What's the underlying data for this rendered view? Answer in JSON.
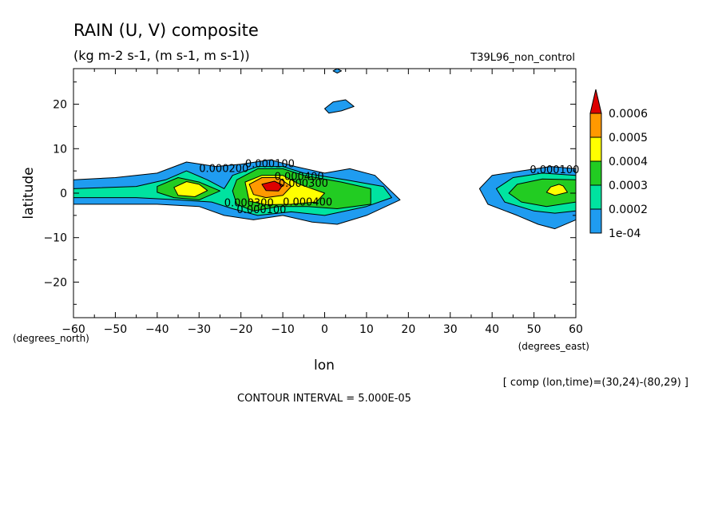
{
  "chart_data": {
    "type": "filled-contour",
    "title": "RAIN (U, V) composite",
    "subtitle": "(kg m-2 s-1, (m s-1, m s-1))",
    "run_label": "T39L96_non_control",
    "xlabel": "lon",
    "ylabel": "latitude",
    "x_units": "(degrees_east)",
    "y_units": "(degrees_north)",
    "xlim": [
      -60,
      60
    ],
    "ylim": [
      -28,
      28
    ],
    "x_ticks": [
      -60,
      -50,
      -40,
      -30,
      -20,
      -10,
      0,
      10,
      20,
      30,
      40,
      50,
      60
    ],
    "y_ticks": [
      -20,
      -10,
      0,
      10,
      20
    ],
    "colorbar": {
      "levels": [
        "1e-04",
        "0.0002",
        "0.0003",
        "0.0004",
        "0.0005",
        "0.0006"
      ],
      "colors": [
        "#1f9cf0",
        "#00e3a0",
        "#22cc22",
        "#ffff00",
        "#ff9900",
        "#dd0000"
      ]
    },
    "contour_labels": [
      "0.000200",
      "0.000100",
      "0.000400",
      "0.000300",
      "0.000300",
      "0.000100",
      "0.000400",
      "0.000100"
    ],
    "contour_interval": "CONTOUR INTERVAL = 5.000E-05",
    "footer_note": "[ comp (lon,time)=(30,24)-(80,29) ]",
    "regions": [
      {
        "level": 1,
        "points": [
          [
            -60,
            3
          ],
          [
            -50,
            3.5
          ],
          [
            -40,
            4.5
          ],
          [
            -33,
            7
          ],
          [
            -26,
            6
          ],
          [
            -20,
            6.5
          ],
          [
            -13,
            7.5
          ],
          [
            -7,
            6
          ],
          [
            0,
            4.5
          ],
          [
            6,
            5.5
          ],
          [
            12,
            4
          ],
          [
            18,
            -1.5
          ],
          [
            10,
            -5
          ],
          [
            3,
            -7
          ],
          [
            -3,
            -6.5
          ],
          [
            -10,
            -5
          ],
          [
            -17,
            -6
          ],
          [
            -24,
            -5
          ],
          [
            -30,
            -3
          ],
          [
            -40,
            -2.5
          ],
          [
            -50,
            -2.5
          ],
          [
            -60,
            -2.5
          ]
        ]
      },
      {
        "level": 2,
        "points": [
          [
            -60,
            1
          ],
          [
            -45,
            1.5
          ],
          [
            -38,
            3
          ],
          [
            -33,
            5
          ],
          [
            -28,
            3
          ],
          [
            -24,
            1
          ],
          [
            -22,
            4
          ],
          [
            -16,
            6
          ],
          [
            -10,
            6
          ],
          [
            -5,
            4.5
          ],
          [
            5,
            3
          ],
          [
            14,
            1.5
          ],
          [
            16,
            -1
          ],
          [
            10,
            -3
          ],
          [
            0,
            -5
          ],
          [
            -8,
            -4.2
          ],
          [
            -16,
            -5
          ],
          [
            -22,
            -3.5
          ],
          [
            -27,
            -2
          ],
          [
            -35,
            -1.5
          ],
          [
            -45,
            -1
          ],
          [
            -60,
            -1
          ]
        ]
      },
      {
        "level": 3,
        "points": [
          [
            -40,
            1.5
          ],
          [
            -35,
            3.5
          ],
          [
            -30,
            2.5
          ],
          [
            -25,
            0.5
          ],
          [
            -30,
            -1.5
          ],
          [
            -36,
            -1
          ],
          [
            -40,
            0.2
          ]
        ]
      },
      {
        "level": 3,
        "points": [
          [
            -21,
            3
          ],
          [
            -16,
            5.5
          ],
          [
            -10,
            5.5
          ],
          [
            -5,
            4
          ],
          [
            4,
            2.5
          ],
          [
            11,
            1
          ],
          [
            11,
            -2.5
          ],
          [
            3,
            -3.5
          ],
          [
            -4,
            -3
          ],
          [
            -11,
            -3
          ],
          [
            -17,
            -4
          ],
          [
            -21,
            -2.5
          ],
          [
            -22,
            0.5
          ]
        ]
      },
      {
        "level": 4,
        "points": [
          [
            -36,
            1.3
          ],
          [
            -33,
            2.6
          ],
          [
            -30,
            2
          ],
          [
            -28,
            0.6
          ],
          [
            -31,
            -0.8
          ],
          [
            -35,
            -0.5
          ]
        ]
      },
      {
        "level": 4,
        "points": [
          [
            -19,
            2.5
          ],
          [
            -15,
            4
          ],
          [
            -10,
            4
          ],
          [
            -6,
            2
          ],
          [
            0,
            0
          ],
          [
            -2,
            -2
          ],
          [
            -8,
            -2.5
          ],
          [
            -14,
            -2.6
          ],
          [
            -18,
            -1.8
          ]
        ]
      },
      {
        "level": 5,
        "points": [
          [
            -18,
            2
          ],
          [
            -15,
            3.5
          ],
          [
            -11,
            3.5
          ],
          [
            -8,
            1.5
          ],
          [
            -10,
            -0.5
          ],
          [
            -14,
            -1
          ],
          [
            -17,
            -0.3
          ]
        ]
      },
      {
        "level": 6,
        "points": [
          [
            -15,
            2
          ],
          [
            -12,
            2.7
          ],
          [
            -10,
            1.8
          ],
          [
            -11,
            0.5
          ],
          [
            -14,
            0.6
          ]
        ]
      },
      {
        "level": 1,
        "points": [
          [
            60,
            5.5
          ],
          [
            54,
            6
          ],
          [
            47,
            5
          ],
          [
            40,
            4
          ],
          [
            37,
            1
          ],
          [
            39,
            -2.5
          ],
          [
            46,
            -5
          ],
          [
            51,
            -7
          ],
          [
            55,
            -8
          ],
          [
            60,
            -6
          ]
        ]
      },
      {
        "level": 2,
        "points": [
          [
            60,
            4
          ],
          [
            52,
            4.5
          ],
          [
            45,
            3.5
          ],
          [
            41,
            1
          ],
          [
            43,
            -2
          ],
          [
            50,
            -4
          ],
          [
            55,
            -4.5
          ],
          [
            60,
            -4
          ]
        ]
      },
      {
        "level": 3,
        "points": [
          [
            60,
            3
          ],
          [
            52,
            3.2
          ],
          [
            46,
            2
          ],
          [
            44,
            0
          ],
          [
            47,
            -2
          ],
          [
            53,
            -3
          ],
          [
            60,
            -2
          ]
        ]
      },
      {
        "level": 4,
        "points": [
          [
            56,
            2
          ],
          [
            54,
            1.4
          ],
          [
            53,
            0.2
          ],
          [
            55,
            -0.5
          ],
          [
            58,
            0.2
          ],
          [
            57,
            1.6
          ]
        ]
      },
      {
        "level": 1,
        "points": [
          [
            0,
            19
          ],
          [
            2,
            20.5
          ],
          [
            5,
            21
          ],
          [
            7,
            19.5
          ],
          [
            4,
            18.5
          ],
          [
            1,
            18
          ]
        ]
      },
      {
        "level": 1,
        "points": [
          [
            2,
            27.5
          ],
          [
            3,
            27
          ],
          [
            4,
            27.5
          ],
          [
            3,
            28
          ]
        ]
      }
    ]
  }
}
